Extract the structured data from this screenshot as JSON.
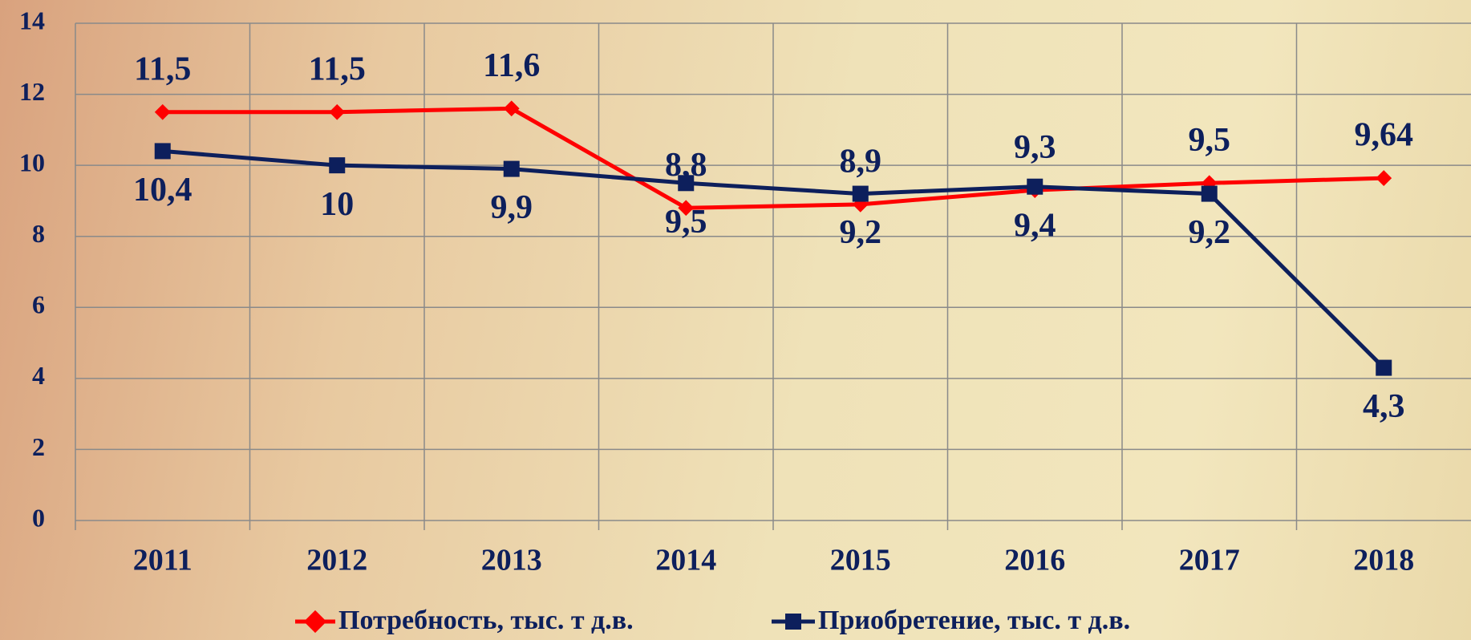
{
  "chart_data": {
    "type": "line",
    "categories": [
      "2011",
      "2012",
      "2013",
      "2014",
      "2015",
      "2016",
      "2017",
      "2018"
    ],
    "series": [
      {
        "name": "Потребность, тыс. т д.в.",
        "color": "#ff0000",
        "marker": "diamond",
        "values": [
          11.5,
          11.5,
          11.6,
          8.8,
          8.9,
          9.3,
          9.5,
          9.64
        ],
        "value_labels": [
          "11,5",
          "11,5",
          "11,6",
          "8,8",
          "8,9",
          "9,3",
          "9,5",
          "9,64"
        ]
      },
      {
        "name": "Приобретение, тыс. т д.в.",
        "color": "#0d1f5c",
        "marker": "square",
        "values": [
          10.4,
          10,
          9.9,
          9.5,
          9.2,
          9.4,
          9.2,
          4.3
        ],
        "value_labels": [
          "10,4",
          "10",
          "9,9",
          "9,5",
          "9,2",
          "9,4",
          "9,2",
          "4,3"
        ]
      }
    ],
    "ylim": [
      0,
      14
    ],
    "yticks": [
      0,
      2,
      4,
      6,
      8,
      10,
      12,
      14
    ],
    "grid": true,
    "legend": "bottom"
  }
}
